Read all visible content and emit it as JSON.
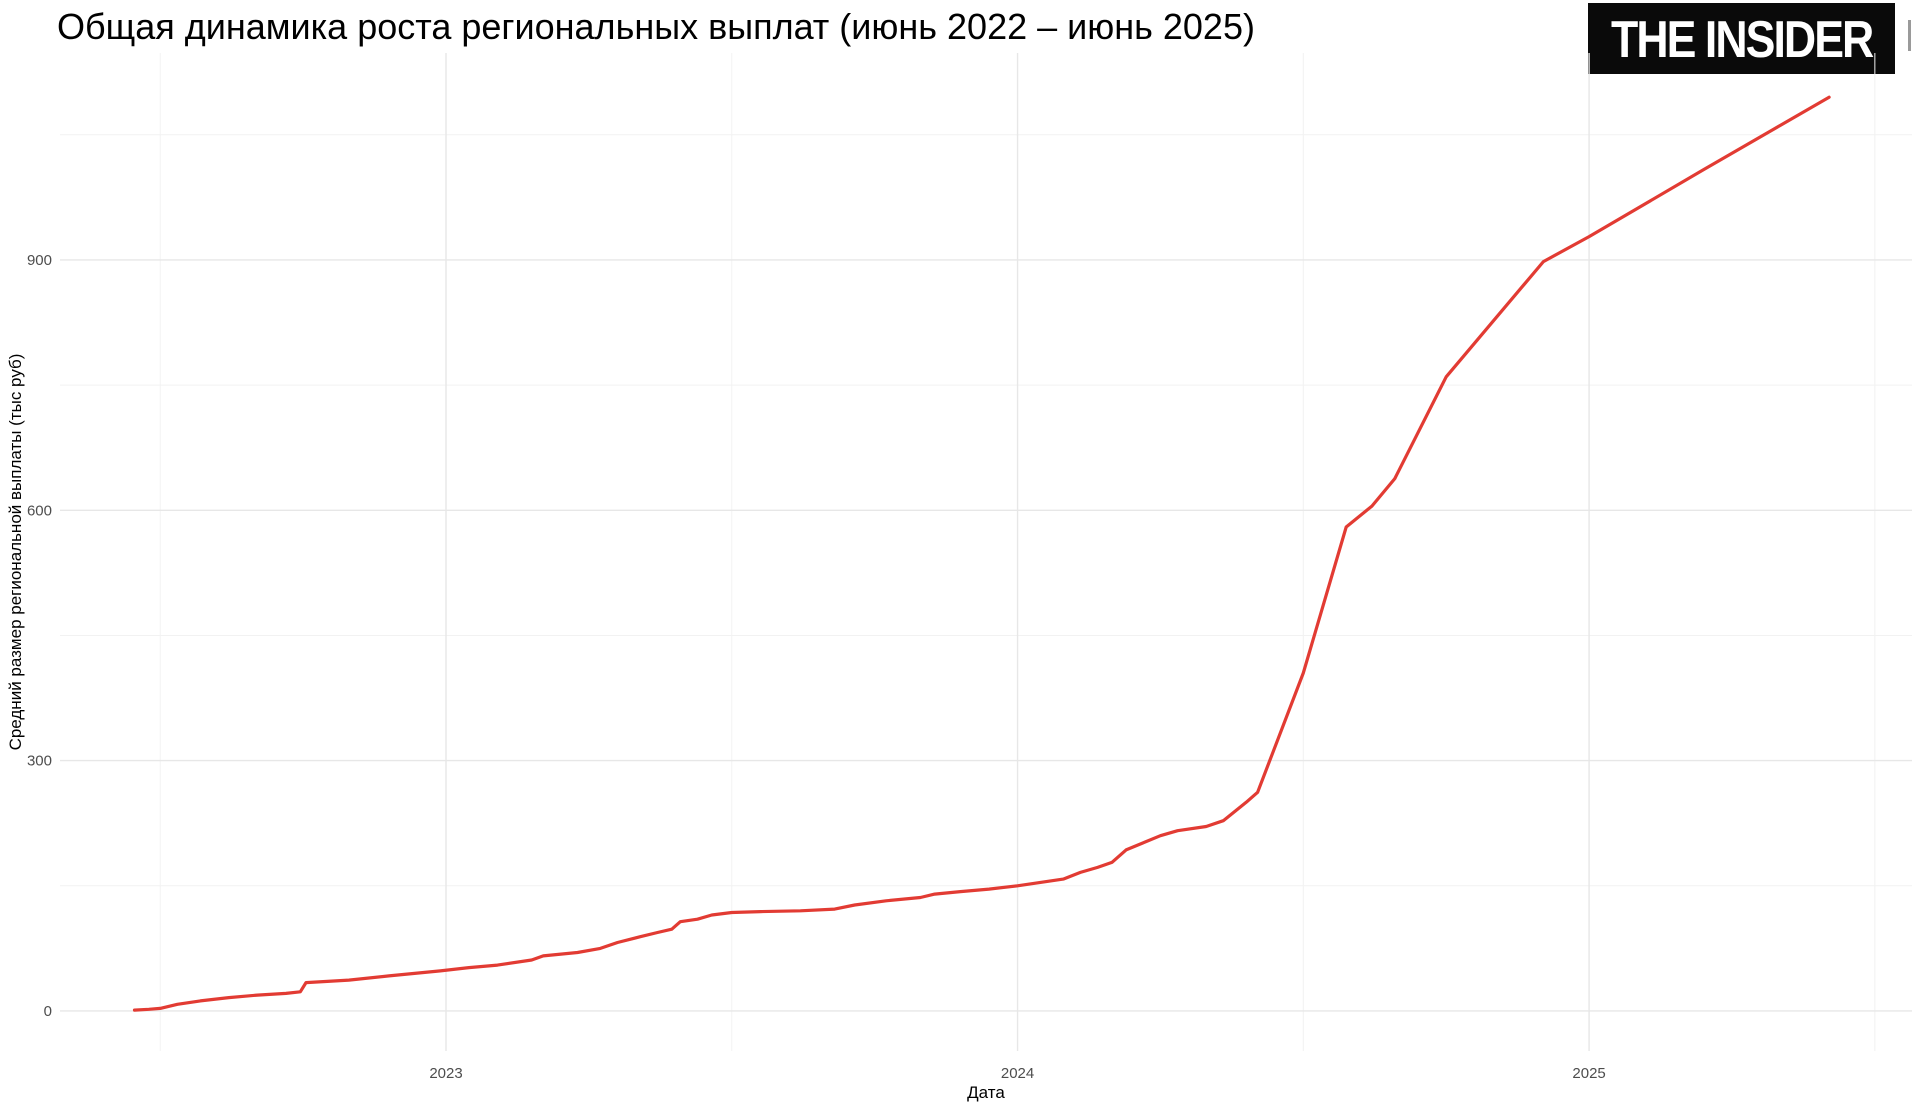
{
  "title": "Общая динамика роста региональных выплат (июнь 2022 – июнь 2025)",
  "logo": {
    "text": "THE INSIDER"
  },
  "colors": {
    "line": "#e23b33",
    "grid_major": "#e7e7e7",
    "grid_minor": "#f2f2f2",
    "tick_text": "#4d4d4d",
    "axis_title_text": "#000000",
    "title_text": "#000000",
    "logo_bg": "#0a0a0a",
    "logo_text": "#ffffff"
  },
  "chart_data": {
    "type": "line",
    "title": "Общая динамика роста региональных выплат (июнь 2022 – июнь 2025)",
    "xlabel": "Дата",
    "ylabel": "Средний размер региональной выплаты (тыс руб)",
    "x_domain": [
      2022.3246,
      2025.565
    ],
    "y_domain": [
      -48,
      1148
    ],
    "x_ticks": [
      {
        "value": 2023,
        "label": "2023"
      },
      {
        "value": 2024,
        "label": "2024"
      },
      {
        "value": 2025,
        "label": "2025"
      }
    ],
    "x_minor_ticks": [
      2022.5,
      2023.5,
      2024.5,
      2025.5
    ],
    "y_ticks": [
      {
        "value": 0,
        "label": "0"
      },
      {
        "value": 300,
        "label": "300"
      },
      {
        "value": 600,
        "label": "600"
      },
      {
        "value": 900,
        "label": "900"
      }
    ],
    "y_minor_ticks": [
      150,
      450,
      750,
      1050
    ],
    "grid": true,
    "legend": "none",
    "series": [
      {
        "name": "Средний размер региональной выплаты",
        "points": [
          [
            2022.455,
            1
          ],
          [
            2022.48,
            2
          ],
          [
            2022.5,
            3
          ],
          [
            2022.53,
            8
          ],
          [
            2022.57,
            12
          ],
          [
            2022.62,
            16
          ],
          [
            2022.67,
            19
          ],
          [
            2022.72,
            21
          ],
          [
            2022.745,
            23
          ],
          [
            2022.755,
            34
          ],
          [
            2022.83,
            37
          ],
          [
            2022.9,
            42
          ],
          [
            2022.99,
            48
          ],
          [
            2023.04,
            52
          ],
          [
            2023.09,
            55
          ],
          [
            2023.15,
            61
          ],
          [
            2023.17,
            66
          ],
          [
            2023.23,
            70
          ],
          [
            2023.27,
            75
          ],
          [
            2023.3,
            82
          ],
          [
            2023.34,
            89
          ],
          [
            2023.37,
            94
          ],
          [
            2023.395,
            98
          ],
          [
            2023.41,
            107
          ],
          [
            2023.44,
            110
          ],
          [
            2023.465,
            115
          ],
          [
            2023.5,
            118
          ],
          [
            2023.55,
            119
          ],
          [
            2023.62,
            120
          ],
          [
            2023.68,
            122
          ],
          [
            2023.715,
            127
          ],
          [
            2023.77,
            132
          ],
          [
            2023.83,
            136
          ],
          [
            2023.855,
            140
          ],
          [
            2023.9,
            143
          ],
          [
            2023.95,
            146
          ],
          [
            2024.0,
            150
          ],
          [
            2024.08,
            158
          ],
          [
            2024.11,
            166
          ],
          [
            2024.14,
            172
          ],
          [
            2024.165,
            178
          ],
          [
            2024.19,
            193
          ],
          [
            2024.25,
            210
          ],
          [
            2024.28,
            216
          ],
          [
            2024.33,
            221
          ],
          [
            2024.36,
            228
          ],
          [
            2024.4,
            250
          ],
          [
            2024.42,
            262
          ],
          [
            2024.5,
            405
          ],
          [
            2024.575,
            580
          ],
          [
            2024.62,
            605
          ],
          [
            2024.66,
            638
          ],
          [
            2024.75,
            760
          ],
          [
            2024.92,
            898
          ],
          [
            2025.0,
            928
          ],
          [
            2025.2,
            1008
          ],
          [
            2025.42,
            1095
          ]
        ]
      }
    ]
  }
}
